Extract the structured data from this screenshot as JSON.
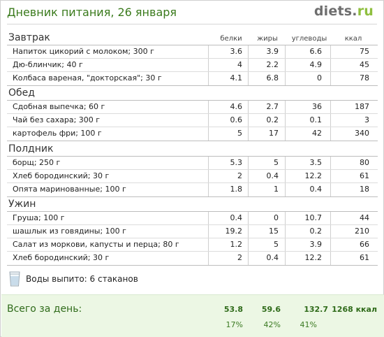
{
  "header": {
    "title": "Дневник питания, 26 января",
    "brand_name": "diets",
    "brand_dot": ".",
    "brand_tld": "ru"
  },
  "columns": {
    "protein": "белки",
    "fat": "жиры",
    "carbs": "углеводы",
    "kcal": "ккал"
  },
  "meals": [
    {
      "name": "Завтрак",
      "items": [
        {
          "name": "Напиток цикорий с молоком; 300 г",
          "protein": "3.6",
          "fat": "3.9",
          "carbs": "6.6",
          "kcal": "75"
        },
        {
          "name": "Дю-блинчик; 40 г",
          "protein": "4",
          "fat": "2.2",
          "carbs": "4.9",
          "kcal": "45"
        },
        {
          "name": "Колбаса вареная, \"докторская\"; 30 г",
          "protein": "4.1",
          "fat": "6.8",
          "carbs": "0",
          "kcal": "78"
        }
      ]
    },
    {
      "name": "Обед",
      "items": [
        {
          "name": "Сдобная выпечка; 60 г",
          "protein": "4.6",
          "fat": "2.7",
          "carbs": "36",
          "kcal": "187"
        },
        {
          "name": "Чай без сахара; 300 г",
          "protein": "0.6",
          "fat": "0.2",
          "carbs": "0.1",
          "kcal": "3"
        },
        {
          "name": "картофель фри; 100 г",
          "protein": "5",
          "fat": "17",
          "carbs": "42",
          "kcal": "340"
        }
      ]
    },
    {
      "name": "Полдник",
      "items": [
        {
          "name": "борщ; 250 г",
          "protein": "5.3",
          "fat": "5",
          "carbs": "3.5",
          "kcal": "80"
        },
        {
          "name": "Хлеб бородинский; 30 г",
          "protein": "2",
          "fat": "0.4",
          "carbs": "12.2",
          "kcal": "61"
        },
        {
          "name": "Опята маринованные; 100 г",
          "protein": "1.8",
          "fat": "1",
          "carbs": "0.4",
          "kcal": "18"
        }
      ]
    },
    {
      "name": "Ужин",
      "items": [
        {
          "name": "Груша; 100 г",
          "protein": "0.4",
          "fat": "0",
          "carbs": "10.7",
          "kcal": "44"
        },
        {
          "name": "шашлык из говядины; 100 г",
          "protein": "19.2",
          "fat": "15",
          "carbs": "0.2",
          "kcal": "210"
        },
        {
          "name": "Салат из моркови, капусты и перца; 80 г",
          "protein": "1.2",
          "fat": "5",
          "carbs": "3.9",
          "kcal": "66"
        },
        {
          "name": "Хлеб бородинский; 30 г",
          "protein": "2",
          "fat": "0.4",
          "carbs": "12.2",
          "kcal": "61"
        }
      ]
    }
  ],
  "water": {
    "icon": "water-glass-icon",
    "text": "Воды выпито: 6 стаканов"
  },
  "totals": {
    "label": "Всего за день:",
    "protein": "53.8",
    "fat": "59.6",
    "carbs": "132.7",
    "kcal": "1268 ккал",
    "protein_pct": "17%",
    "fat_pct": "42%",
    "carbs_pct": "41%"
  },
  "colors": {
    "title": "#3a7a1c",
    "brand_accent": "#8fbf3f",
    "total_bg": "#ecf7e4"
  }
}
